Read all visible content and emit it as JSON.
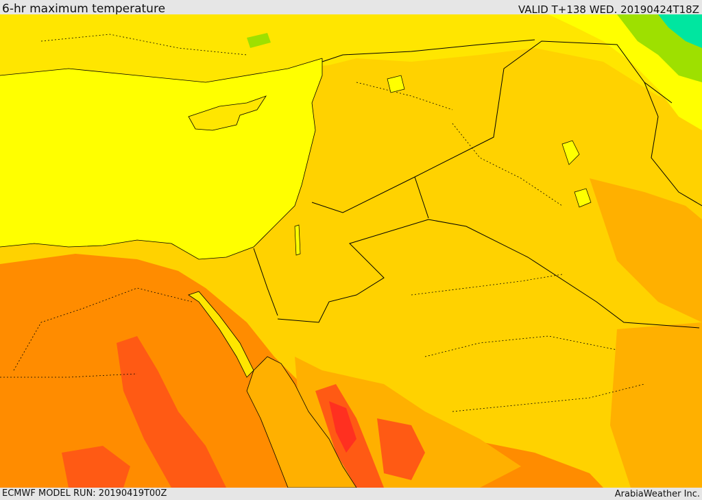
{
  "header": {
    "title": "6-hr maximum temperature",
    "valid": "VALID T+138 WED. 20190424T18Z"
  },
  "footer": {
    "model_run": "ECMWF MODEL RUN: 20190419T00Z",
    "credit": "ArabiaWeather Inc."
  },
  "map": {
    "field": "6-hr maximum temperature",
    "colors": {
      "sea": "#ffff00",
      "temp_band_1": "#00e6a0",
      "temp_band_2": "#9ee000",
      "temp_band_3": "#ffff00",
      "temp_band_4": "#ffe600",
      "temp_band_5": "#ffd200",
      "temp_band_6": "#ffb000",
      "temp_band_7": "#ff8c00",
      "temp_band_8": "#ff5a14",
      "temp_band_9": "#ff3020",
      "borders": "#000000"
    }
  }
}
